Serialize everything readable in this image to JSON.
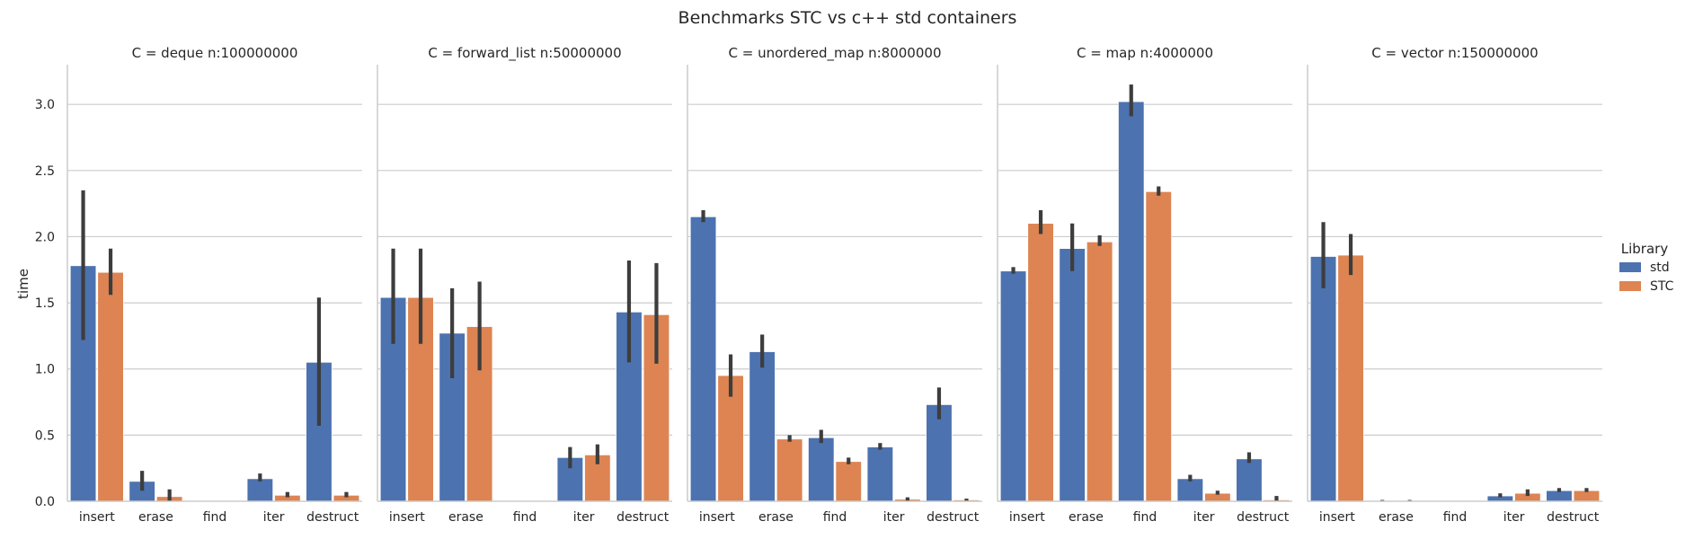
{
  "chart_data": {
    "type": "bar",
    "title": "Benchmarks STC vs c++ std containers",
    "ylabel": "time",
    "xlabel": "",
    "ylim": [
      0,
      3.3
    ],
    "yticks": [
      "0.0",
      "0.5",
      "1.0",
      "1.5",
      "2.0",
      "2.5",
      "3.0"
    ],
    "grid": "horizontal",
    "legend": {
      "title": "Library",
      "position": "right",
      "entries": [
        {
          "name": "std",
          "color": "#4c72b0"
        },
        {
          "name": "STC",
          "color": "#dd8452"
        }
      ]
    },
    "categories": [
      "insert",
      "erase",
      "find",
      "iter",
      "destruct"
    ],
    "panels": [
      {
        "title": "C = deque n:100000000",
        "series": [
          {
            "name": "std",
            "values": [
              1.78,
              0.15,
              0.0,
              0.17,
              1.05
            ],
            "err_low": [
              1.22,
              0.08,
              0.0,
              0.15,
              0.57
            ],
            "err_high": [
              2.35,
              0.23,
              0.0,
              0.21,
              1.54
            ]
          },
          {
            "name": "STC",
            "values": [
              1.73,
              0.035,
              0.0,
              0.045,
              0.045
            ],
            "err_low": [
              1.56,
              0.0,
              0.0,
              0.03,
              0.03
            ],
            "err_high": [
              1.91,
              0.09,
              0.0,
              0.07,
              0.07
            ]
          }
        ]
      },
      {
        "title": "C = forward_list n:50000000",
        "series": [
          {
            "name": "std",
            "values": [
              1.54,
              1.27,
              0.0,
              0.33,
              1.43
            ],
            "err_low": [
              1.19,
              0.93,
              0.0,
              0.25,
              1.05
            ],
            "err_high": [
              1.91,
              1.61,
              0.0,
              0.41,
              1.82
            ]
          },
          {
            "name": "STC",
            "values": [
              1.54,
              1.32,
              0.0,
              0.35,
              1.41
            ],
            "err_low": [
              1.19,
              0.99,
              0.0,
              0.28,
              1.04
            ],
            "err_high": [
              1.91,
              1.66,
              0.0,
              0.43,
              1.8
            ]
          }
        ]
      },
      {
        "title": "C = unordered_map n:8000000",
        "series": [
          {
            "name": "std",
            "values": [
              2.15,
              1.13,
              0.48,
              0.41,
              0.73
            ],
            "err_low": [
              2.11,
              1.01,
              0.44,
              0.39,
              0.62
            ],
            "err_high": [
              2.2,
              1.26,
              0.54,
              0.44,
              0.86
            ]
          },
          {
            "name": "STC",
            "values": [
              0.95,
              0.47,
              0.3,
              0.015,
              0.01
            ],
            "err_low": [
              0.79,
              0.45,
              0.28,
              0.0,
              0.0
            ],
            "err_high": [
              1.11,
              0.5,
              0.33,
              0.03,
              0.02
            ]
          }
        ]
      },
      {
        "title": "C = map n:4000000",
        "series": [
          {
            "name": "std",
            "values": [
              1.74,
              1.91,
              3.02,
              0.17,
              0.32
            ],
            "err_low": [
              1.72,
              1.74,
              2.91,
              0.15,
              0.29
            ],
            "err_high": [
              1.77,
              2.1,
              3.15,
              0.2,
              0.37
            ]
          },
          {
            "name": "STC",
            "values": [
              2.1,
              1.96,
              2.34,
              0.06,
              0.01
            ],
            "err_low": [
              2.02,
              1.93,
              2.31,
              0.05,
              0.0
            ],
            "err_high": [
              2.2,
              2.01,
              2.38,
              0.08,
              0.04
            ]
          }
        ]
      },
      {
        "title": "C = vector n:150000000",
        "series": [
          {
            "name": "std",
            "values": [
              1.85,
              0.005,
              0.0,
              0.04,
              0.08
            ],
            "err_low": [
              1.61,
              0.0,
              0.0,
              0.03,
              0.07
            ],
            "err_high": [
              2.11,
              0.01,
              0.0,
              0.06,
              0.1
            ]
          },
          {
            "name": "STC",
            "values": [
              1.86,
              0.005,
              0.0,
              0.06,
              0.08
            ],
            "err_low": [
              1.71,
              0.0,
              0.0,
              0.04,
              0.07
            ],
            "err_high": [
              2.02,
              0.01,
              0.0,
              0.09,
              0.1
            ]
          }
        ]
      }
    ]
  }
}
